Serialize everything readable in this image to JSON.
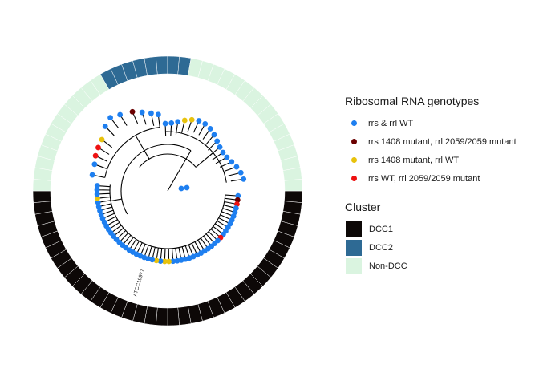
{
  "tip_label": "ATCC19977",
  "legend_genotype": {
    "title": "Ribosomal RNA genotypes",
    "items": [
      {
        "label": "rrs & rrl WT",
        "color": "#1E7FF0"
      },
      {
        "label": "rrs 1408 mutant, rrl 2059/2059 mutant",
        "color": "#6B0000"
      },
      {
        "label": "rrs 1408 mutant, rrl WT",
        "color": "#E8C20C"
      },
      {
        "label": "rrs WT, rrl 2059/2059 mutant",
        "color": "#EE1111"
      }
    ]
  },
  "legend_cluster": {
    "title": "Cluster",
    "items": [
      {
        "label": "DCC1",
        "color": "#0D0807"
      },
      {
        "label": "DCC2",
        "color": "#2E6A94"
      },
      {
        "label": "Non-DCC",
        "color": "#DAF4E0"
      }
    ]
  }
}
